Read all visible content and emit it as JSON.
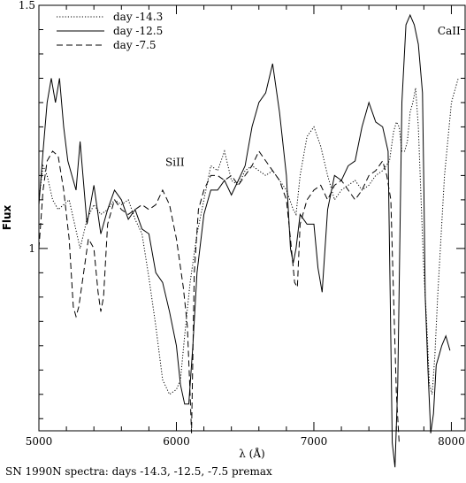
{
  "chart_data": {
    "type": "line",
    "xlabel": "λ (Å)",
    "ylabel": "Flux",
    "xlim": [
      5000,
      8100
    ],
    "ylim": [
      0.625,
      1.5
    ],
    "x_ticks": [
      5000,
      6000,
      7000,
      8000
    ],
    "y_ticks": [
      1,
      1.5
    ],
    "grid": false,
    "legend_position": "top-left",
    "annotations": [
      {
        "text": "SiII",
        "x": 5920,
        "y": 1.17
      },
      {
        "text": "CaII",
        "x": 7900,
        "y": 1.44
      }
    ],
    "series": [
      {
        "name": "day -14.3",
        "dash": "dotted",
        "x": [
          5000,
          5030,
          5060,
          5100,
          5140,
          5180,
          5220,
          5260,
          5300,
          5350,
          5400,
          5450,
          5500,
          5550,
          5600,
          5650,
          5700,
          5750,
          5800,
          5850,
          5900,
          5950,
          6000,
          6030,
          6060,
          6100,
          6150,
          6200,
          6250,
          6300,
          6350,
          6400,
          6450,
          6500,
          6550,
          6600,
          6650,
          6700,
          6750,
          6800,
          6850,
          6870,
          6900,
          6950,
          7000,
          7050,
          7100,
          7150,
          7200,
          7250,
          7300,
          7350,
          7400,
          7450,
          7500,
          7550,
          7560,
          7580,
          7600,
          7620,
          7640,
          7660,
          7680,
          7700,
          7720,
          7740,
          7760,
          7780,
          7800,
          7820,
          7840,
          7860,
          7880,
          7900,
          7950,
          8000,
          8050
        ],
        "y": [
          1.1,
          1.17,
          1.15,
          1.1,
          1.08,
          1.09,
          1.1,
          1.05,
          1.0,
          1.06,
          1.09,
          1.07,
          1.08,
          1.1,
          1.09,
          1.1,
          1.06,
          1.03,
          0.94,
          0.84,
          0.73,
          0.7,
          0.71,
          0.73,
          0.82,
          0.93,
          1.03,
          1.1,
          1.17,
          1.16,
          1.2,
          1.14,
          1.13,
          1.16,
          1.17,
          1.16,
          1.15,
          1.16,
          1.14,
          1.12,
          1.08,
          1.07,
          1.15,
          1.23,
          1.25,
          1.21,
          1.15,
          1.1,
          1.12,
          1.13,
          1.14,
          1.12,
          1.13,
          1.15,
          1.16,
          1.18,
          1.2,
          1.24,
          1.26,
          1.25,
          1.2,
          1.2,
          1.22,
          1.28,
          1.3,
          1.33,
          1.25,
          1.1,
          0.95,
          0.85,
          0.72,
          0.7,
          0.78,
          0.9,
          1.15,
          1.3,
          1.35
        ]
      },
      {
        "name": "day -12.5",
        "dash": "solid",
        "x": [
          5000,
          5030,
          5060,
          5090,
          5120,
          5150,
          5180,
          5210,
          5240,
          5270,
          5300,
          5350,
          5400,
          5450,
          5500,
          5550,
          5600,
          5650,
          5700,
          5750,
          5800,
          5850,
          5900,
          5950,
          6000,
          6030,
          6060,
          6090,
          6120,
          6150,
          6200,
          6250,
          6300,
          6350,
          6400,
          6450,
          6500,
          6550,
          6600,
          6650,
          6700,
          6750,
          6800,
          6830,
          6850,
          6870,
          6900,
          6950,
          7000,
          7030,
          7060,
          7100,
          7150,
          7200,
          7250,
          7300,
          7350,
          7400,
          7450,
          7500,
          7540,
          7555,
          7570,
          7590,
          7610,
          7640,
          7670,
          7700,
          7730,
          7760,
          7790,
          7800,
          7810,
          7830,
          7850,
          7870,
          7890,
          7910,
          7930,
          7960,
          7990
        ],
        "y": [
          1.09,
          1.2,
          1.3,
          1.35,
          1.3,
          1.35,
          1.25,
          1.18,
          1.15,
          1.12,
          1.22,
          1.05,
          1.13,
          1.03,
          1.08,
          1.12,
          1.1,
          1.06,
          1.08,
          1.04,
          1.03,
          0.95,
          0.93,
          0.87,
          0.8,
          0.72,
          0.68,
          0.68,
          0.8,
          0.95,
          1.07,
          1.12,
          1.12,
          1.14,
          1.11,
          1.14,
          1.17,
          1.25,
          1.3,
          1.32,
          1.38,
          1.28,
          1.15,
          1.0,
          0.97,
          1.0,
          1.07,
          1.05,
          1.05,
          0.96,
          0.91,
          1.08,
          1.15,
          1.14,
          1.17,
          1.18,
          1.25,
          1.3,
          1.26,
          1.25,
          1.2,
          0.9,
          0.6,
          0.55,
          0.72,
          1.3,
          1.46,
          1.48,
          1.46,
          1.42,
          1.32,
          1.12,
          0.9,
          0.75,
          0.62,
          0.66,
          0.76,
          0.78,
          0.8,
          0.82,
          0.79
        ]
      },
      {
        "name": "day -7.5",
        "dash": "dashed",
        "x": [
          5000,
          5030,
          5060,
          5100,
          5140,
          5180,
          5220,
          5250,
          5270,
          5290,
          5320,
          5360,
          5400,
          5430,
          5450,
          5470,
          5500,
          5550,
          5600,
          5650,
          5700,
          5750,
          5800,
          5850,
          5900,
          5950,
          6000,
          6050,
          6080,
          6100,
          6110,
          6130,
          6160,
          6200,
          6250,
          6300,
          6350,
          6400,
          6450,
          6500,
          6550,
          6600,
          6650,
          6700,
          6750,
          6800,
          6830,
          6860,
          6880,
          6900,
          6950,
          7000,
          7050,
          7100,
          7150,
          7200,
          7250,
          7300,
          7350,
          7400,
          7450,
          7500,
          7530,
          7560,
          7580,
          7600,
          7620
        ],
        "y": [
          1.0,
          1.12,
          1.18,
          1.2,
          1.19,
          1.12,
          1.02,
          0.88,
          0.86,
          0.88,
          0.94,
          1.02,
          1.0,
          0.91,
          0.87,
          0.9,
          1.05,
          1.1,
          1.08,
          1.07,
          1.08,
          1.09,
          1.08,
          1.09,
          1.12,
          1.09,
          1.02,
          0.92,
          0.84,
          0.7,
          0.62,
          0.95,
          1.08,
          1.12,
          1.15,
          1.15,
          1.14,
          1.15,
          1.13,
          1.15,
          1.17,
          1.2,
          1.18,
          1.16,
          1.14,
          1.1,
          1.02,
          0.93,
          0.92,
          1.05,
          1.1,
          1.12,
          1.13,
          1.1,
          1.13,
          1.14,
          1.12,
          1.1,
          1.12,
          1.15,
          1.16,
          1.18,
          1.15,
          1.1,
          0.9,
          0.7,
          0.6
        ]
      }
    ]
  },
  "caption": "SN 1990N spectra:  days -14.3, -12.5, -7.5 premax"
}
